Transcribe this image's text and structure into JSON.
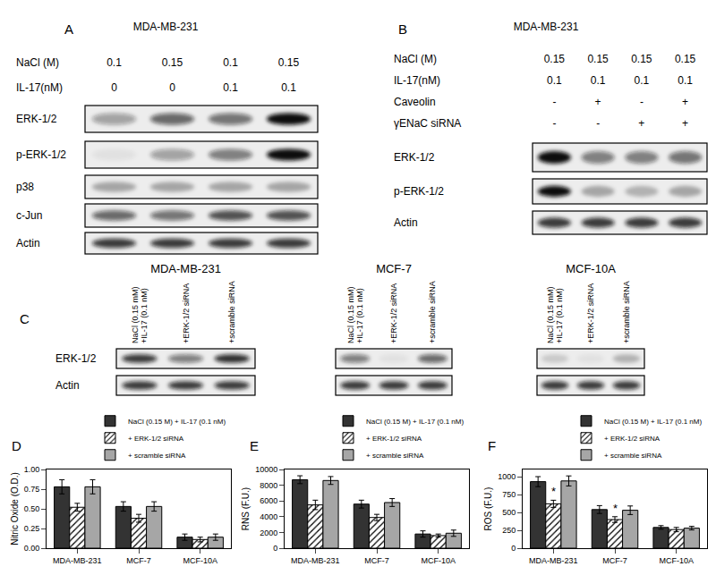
{
  "panels": {
    "A": {
      "label": "A",
      "cell_line": "MDA-MB-231",
      "conditions": [
        {
          "name": "NaCl (M)",
          "values": [
            "0.1",
            "0.15",
            "0.1",
            "0.15"
          ]
        },
        {
          "name": "IL-17(nM)",
          "values": [
            "0",
            "0",
            "0.1",
            "0.1"
          ]
        }
      ],
      "blots": [
        {
          "name": "ERK-1/2",
          "bands": [
            0.35,
            0.6,
            0.55,
            1.0
          ]
        },
        {
          "name": "p-ERK-1/2",
          "bands": [
            0.05,
            0.35,
            0.5,
            1.0
          ]
        },
        {
          "name": "p38",
          "bands": [
            0.3,
            0.3,
            0.3,
            0.3
          ]
        },
        {
          "name": "c-Jun",
          "bands": [
            0.6,
            0.55,
            0.7,
            0.7
          ]
        },
        {
          "name": "Actin",
          "bands": [
            0.8,
            0.8,
            0.8,
            0.8
          ]
        }
      ]
    },
    "B": {
      "label": "B",
      "cell_line": "MDA-MB-231",
      "conditions": [
        {
          "name": "NaCl (M)",
          "values": [
            "0.15",
            "0.15",
            "0.15",
            "0.15"
          ]
        },
        {
          "name": "IL-17(nM)",
          "values": [
            "0.1",
            "0.1",
            "0.1",
            "0.1"
          ]
        },
        {
          "name": "Caveolin",
          "values": [
            "-",
            "+",
            "-",
            "+"
          ]
        },
        {
          "name": "γENaC siRNA",
          "values": [
            "-",
            "-",
            "+",
            "+"
          ]
        }
      ],
      "blots": [
        {
          "name": "ERK-1/2",
          "bands": [
            1.0,
            0.5,
            0.5,
            0.55
          ]
        },
        {
          "name": "p-ERK-1/2",
          "bands": [
            1.0,
            0.3,
            0.25,
            0.3
          ]
        },
        {
          "name": "Actin",
          "bands": [
            0.8,
            0.8,
            0.8,
            0.8
          ]
        }
      ]
    },
    "C": {
      "label": "C",
      "row_names": [
        "ERK-1/2",
        "Actin"
      ],
      "groups": [
        {
          "cell_line": "MDA-MB-231",
          "lanes": [
            [
              "NaCl (0.15 mM)",
              "+IL-17 (0.1 nM)"
            ],
            [
              "+ERK-1/2 siRNA"
            ],
            [
              "+scramble siRNA"
            ]
          ],
          "bands": [
            [
              0.8,
              0.5,
              0.85
            ],
            [
              0.8,
              0.8,
              0.8
            ]
          ]
        },
        {
          "cell_line": "MCF-7",
          "lanes": [
            [
              "NaCl (0.15 mM)",
              "+IL-17 (0.1 nM)"
            ],
            [
              "+ERK-1/2 siRNA"
            ],
            [
              "+scramble siRNA"
            ]
          ],
          "bands": [
            [
              0.5,
              0.05,
              0.6
            ],
            [
              0.8,
              0.8,
              0.8
            ]
          ]
        },
        {
          "cell_line": "MCF-10A",
          "lanes": [
            [
              "NaCl (0.15 mM)",
              "+IL-17 (0.1 nM)"
            ],
            [
              "+ERK-1/2 siRNA"
            ],
            [
              "+scramble siRNA"
            ]
          ],
          "bands": [
            [
              0.15,
              0.05,
              0.25
            ],
            [
              0.8,
              0.8,
              0.8
            ]
          ]
        }
      ]
    }
  },
  "chart_data": [
    {
      "type": "bar",
      "title": "D",
      "y_label": "Nitric Oxide (O.D.)",
      "categories": [
        "MDA-MB-231",
        "MCF-7",
        "MCF-10A"
      ],
      "series": [
        {
          "name": "NaCl (0.15 M) + IL-17 (0.1 nM)",
          "color": "#333333",
          "values": [
            0.78,
            0.53,
            0.14
          ],
          "errors": [
            0.09,
            0.06,
            0.04
          ]
        },
        {
          "name": "+ ERK-1/2 siRNA",
          "color": "#ffffff",
          "marker": "hatched",
          "values": [
            0.52,
            0.38,
            0.11
          ],
          "errors": [
            0.05,
            0.05,
            0.03
          ]
        },
        {
          "name": "+ scramble siRNA",
          "color": "#a6a6a6",
          "values": [
            0.78,
            0.53,
            0.14
          ],
          "errors": [
            0.09,
            0.06,
            0.04
          ]
        }
      ],
      "ylim": [
        0,
        1.0
      ],
      "yticks": [
        {
          "value": 0,
          "label": "0.00"
        },
        {
          "value": 0.25,
          "label": "0.25"
        },
        {
          "value": 0.5,
          "label": "0.50"
        },
        {
          "value": 0.75,
          "label": "0.75"
        },
        {
          "value": 1.0,
          "label": "1.00"
        }
      ],
      "grid": false,
      "legend": "upper right"
    },
    {
      "type": "bar",
      "title": "E",
      "y_label": "RNS (F.U.)",
      "categories": [
        "MDA-MB-231",
        "MCF-7",
        "MCF-10A"
      ],
      "series": [
        {
          "name": "NaCl (0.15 M) + IL-17 (0.1 nM)",
          "color": "#333333",
          "values": [
            8700,
            5600,
            1800
          ],
          "errors": [
            500,
            500,
            400
          ]
        },
        {
          "name": "+ ERK-1/2 siRNA",
          "color": "#ffffff",
          "marker": "hatched",
          "values": [
            5500,
            3900,
            1600
          ],
          "errors": [
            600,
            400,
            200
          ]
        },
        {
          "name": "+ scramble siRNA",
          "color": "#a6a6a6",
          "values": [
            8600,
            5800,
            1900
          ],
          "errors": [
            500,
            500,
            400
          ]
        }
      ],
      "ylim": [
        0,
        10000
      ],
      "yticks": [
        0,
        2000,
        4000,
        6000,
        8000,
        10000
      ],
      "grid": false,
      "legend": "upper right"
    },
    {
      "type": "bar",
      "title": "F",
      "y_label": "ROS (F.U.)",
      "categories": [
        "MDA-MB-231",
        "MCF-7",
        "MCF-10A"
      ],
      "series": [
        {
          "name": "NaCl (0.15 M) + IL-17 (0.1 nM)",
          "color": "#333333",
          "values": [
            930,
            540,
            290
          ],
          "errors": [
            70,
            55,
            25
          ]
        },
        {
          "name": "+ ERK-1/2 siRNA",
          "color": "#ffffff",
          "marker": "hatched",
          "values": [
            620,
            400,
            260
          ],
          "errors": [
            50,
            40,
            30
          ]
        },
        {
          "name": "+ scramble siRNA",
          "color": "#a6a6a6",
          "values": [
            940,
            530,
            280
          ],
          "errors": [
            70,
            60,
            25
          ]
        }
      ],
      "ylim": [
        0,
        1100
      ],
      "yticks": [
        0,
        250,
        500,
        750,
        1000
      ],
      "grid": false,
      "legend": "upper right",
      "annotations": [
        {
          "text": "*",
          "category": "MDA-MB-231",
          "series": "+ ERK-1/2 siRNA"
        },
        {
          "text": "*",
          "category": "MCF-7",
          "series": "+ ERK-1/2 siRNA"
        }
      ]
    }
  ]
}
